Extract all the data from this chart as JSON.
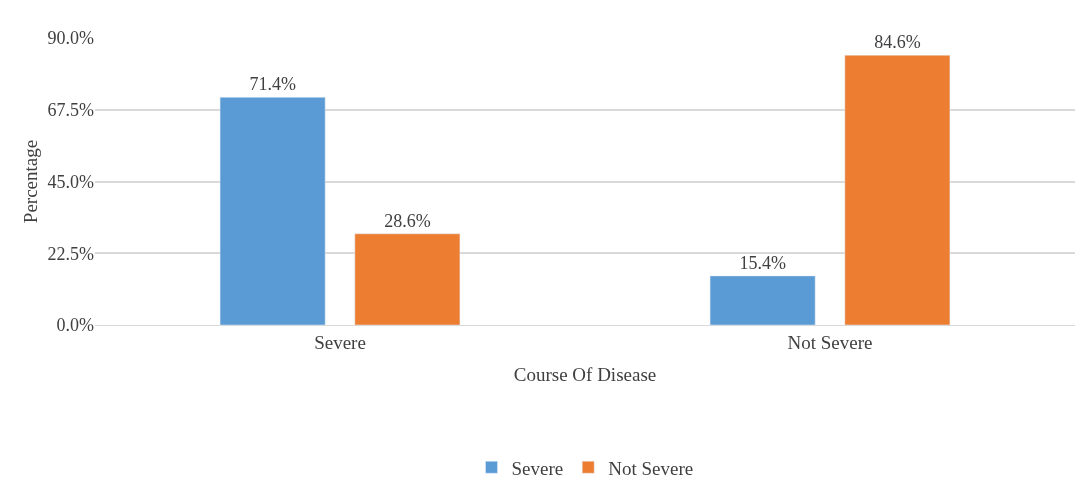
{
  "chart_data": {
    "type": "bar",
    "xlabel": "Course Of Disease",
    "ylabel": "Percentage",
    "categories": [
      "Severe",
      "Not Severe"
    ],
    "series": [
      {
        "name": "Severe",
        "color": "#5b9bd5",
        "values": [
          71.4,
          15.4
        ],
        "value_labels": [
          "71.4%",
          "15.4%"
        ]
      },
      {
        "name": "Not Severe",
        "color": "#ed7d31",
        "values": [
          28.6,
          84.6
        ],
        "value_labels": [
          "28.6%",
          "84.6%"
        ]
      }
    ],
    "ylim": [
      0,
      90
    ],
    "yticks": [
      {
        "value": 0,
        "label": "0.0%"
      },
      {
        "value": 22.5,
        "label": "22.5%"
      },
      {
        "value": 45,
        "label": "45.0%"
      },
      {
        "value": 67.5,
        "label": "67.5%"
      },
      {
        "value": 90,
        "label": "90.0%"
      }
    ],
    "grid": "y",
    "legend": "bottom"
  }
}
